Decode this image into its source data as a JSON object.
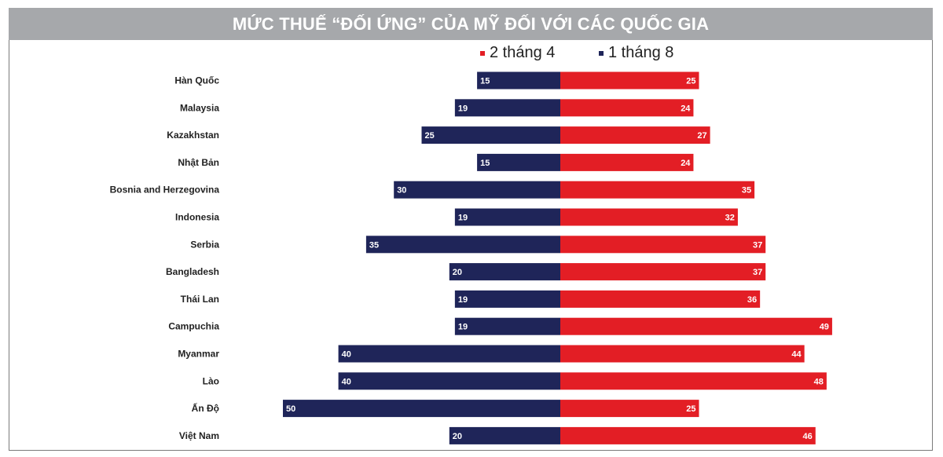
{
  "chart_data": {
    "type": "bar",
    "title": "MỨC THUẾ “ĐỐI ỨNG” CỦA MỸ ĐỐI VỚI CÁC QUỐC GIA",
    "orientation": "horizontal-diverging",
    "categories": [
      "Hàn Quốc",
      "Malaysia",
      "Kazakhstan",
      "Nhật Bản",
      "Bosnia and Herzegovina",
      "Indonesia",
      "Serbia",
      "Bangladesh",
      "Thái Lan",
      "Campuchia",
      "Myanmar",
      "Lào",
      "Ấn Độ",
      "Việt Nam"
    ],
    "series": [
      {
        "name": "2 tháng 4",
        "color": "#e31e25",
        "side": "right",
        "values": [
          25,
          24,
          27,
          24,
          35,
          32,
          37,
          37,
          36,
          49,
          44,
          48,
          25,
          46
        ]
      },
      {
        "name": "1 tháng 8",
        "color": "#1f2559",
        "side": "left",
        "values": [
          15,
          19,
          25,
          15,
          30,
          19,
          35,
          20,
          19,
          19,
          40,
          40,
          50,
          20
        ]
      }
    ],
    "xlim": [
      0,
      50
    ],
    "grid": false,
    "legend": "top-right"
  }
}
